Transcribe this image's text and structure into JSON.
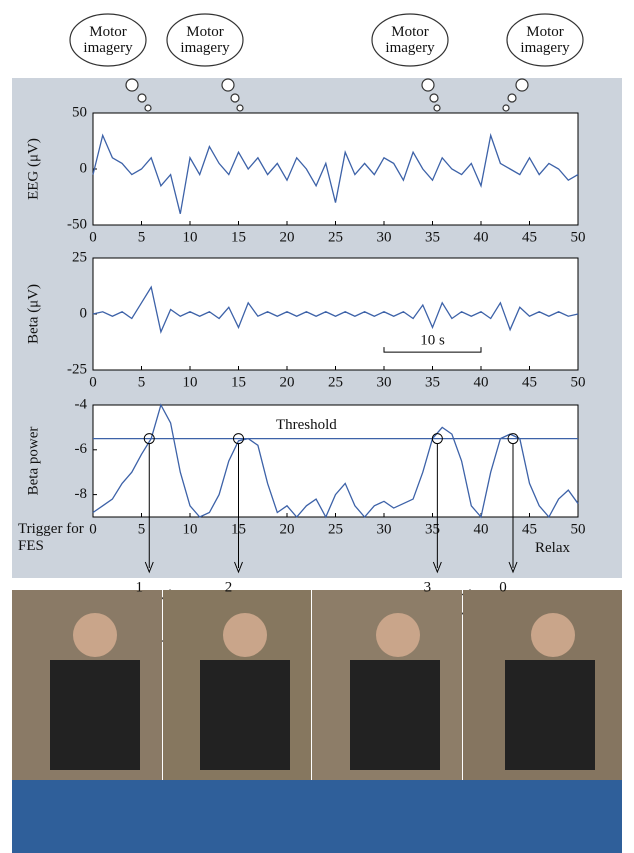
{
  "chart_data": [
    {
      "type": "line",
      "ylabel": "EEG (μV)",
      "x": [
        0,
        1,
        2,
        3,
        4,
        5,
        6,
        7,
        8,
        9,
        10,
        11,
        12,
        13,
        14,
        15,
        16,
        17,
        18,
        19,
        20,
        21,
        22,
        23,
        24,
        25,
        26,
        27,
        28,
        29,
        30,
        31,
        32,
        33,
        34,
        35,
        36,
        37,
        38,
        39,
        40,
        41,
        42,
        43,
        44,
        45,
        46,
        47,
        48,
        49,
        50
      ],
      "series": [
        {
          "color": "#3d62a8",
          "values": [
            -5,
            30,
            10,
            5,
            -5,
            0,
            10,
            -15,
            -5,
            -40,
            10,
            -5,
            20,
            5,
            -5,
            15,
            0,
            10,
            -5,
            5,
            -10,
            10,
            0,
            -15,
            5,
            -30,
            15,
            -5,
            5,
            -5,
            10,
            5,
            -10,
            15,
            0,
            -10,
            10,
            0,
            -5,
            5,
            -15,
            30,
            5,
            0,
            -5,
            10,
            -5,
            5,
            0,
            -10,
            -5
          ]
        }
      ],
      "xlim": [
        0,
        50
      ],
      "xticks": [
        0,
        5,
        10,
        15,
        20,
        25,
        30,
        35,
        40,
        45,
        50
      ],
      "ylim": [
        -50,
        50
      ],
      "yticks": [
        -50,
        0,
        50
      ]
    },
    {
      "type": "line",
      "ylabel": "Beta (μV)",
      "x": [
        0,
        1,
        2,
        3,
        4,
        5,
        6,
        7,
        8,
        9,
        10,
        11,
        12,
        13,
        14,
        15,
        16,
        17,
        18,
        19,
        20,
        21,
        22,
        23,
        24,
        25,
        26,
        27,
        28,
        29,
        30,
        31,
        32,
        33,
        34,
        35,
        36,
        37,
        38,
        39,
        40,
        41,
        42,
        43,
        44,
        45,
        46,
        47,
        48,
        49,
        50
      ],
      "series": [
        {
          "color": "#3d62a8",
          "values": [
            0,
            1,
            -1,
            1,
            -2,
            5,
            12,
            -8,
            2,
            -1,
            1,
            -1,
            1,
            -2,
            3,
            -6,
            5,
            -1,
            1,
            -1,
            1,
            -1,
            1,
            -1,
            1,
            -1,
            1,
            -1,
            1,
            -1,
            1,
            -1,
            1,
            -2,
            4,
            -6,
            5,
            -2,
            1,
            -1,
            1,
            -2,
            5,
            -7,
            3,
            -1,
            1,
            -1,
            1,
            -1,
            0
          ]
        }
      ],
      "xlim": [
        0,
        50
      ],
      "xticks": [
        0,
        5,
        10,
        15,
        20,
        25,
        30,
        35,
        40,
        45,
        50
      ],
      "ylim": [
        -25,
        25
      ],
      "yticks": [
        -25,
        0,
        25
      ],
      "scale_bar": {
        "label": "10 s",
        "x": [
          30,
          40
        ],
        "y": -17
      }
    },
    {
      "type": "line",
      "ylabel": "Beta power",
      "x": [
        0,
        1,
        2,
        3,
        4,
        5,
        6,
        7,
        8,
        9,
        10,
        11,
        12,
        13,
        14,
        15,
        16,
        17,
        18,
        19,
        20,
        21,
        22,
        23,
        24,
        25,
        26,
        27,
        28,
        29,
        30,
        31,
        32,
        33,
        34,
        35,
        36,
        37,
        38,
        39,
        40,
        41,
        42,
        43,
        44,
        45,
        46,
        47,
        48,
        49,
        50
      ],
      "series": [
        {
          "color": "#3d62a8",
          "values": [
            -8.8,
            -8.5,
            -8.2,
            -7.5,
            -7,
            -6.2,
            -5.5,
            -4,
            -4.8,
            -7,
            -8.5,
            -9,
            -8.8,
            -8,
            -6.5,
            -5.6,
            -5.5,
            -5.8,
            -7.5,
            -8.8,
            -8.5,
            -9,
            -8.5,
            -8.2,
            -9,
            -8,
            -7.5,
            -8.5,
            -9,
            -8.5,
            -8.3,
            -8.6,
            -8.4,
            -8.2,
            -7,
            -5.5,
            -5,
            -5.3,
            -6.5,
            -8.5,
            -9,
            -7,
            -5.5,
            -5.3,
            -5.5,
            -7.5,
            -8.5,
            -9,
            -8.2,
            -7.8,
            -8.4
          ]
        }
      ],
      "xlim": [
        0,
        50
      ],
      "xticks": [
        0,
        5,
        10,
        15,
        20,
        25,
        30,
        35,
        40,
        45,
        50
      ],
      "ylim": [
        -9,
        -4
      ],
      "yticks": [
        -8,
        -6,
        -4
      ],
      "threshold": -5.5,
      "threshold_label": "Threshold",
      "trigger_times": [
        5.8,
        15,
        35.5,
        43.3
      ]
    }
  ],
  "figure": {
    "thought_bubbles": [
      "Motor imagery",
      "Motor imagery",
      "Motor imagery",
      "Motor imagery"
    ],
    "trigger_label": "Trigger for FES",
    "relax_label": "Relax",
    "fes_labels": [
      "1",
      "2",
      "3",
      "0"
    ]
  }
}
